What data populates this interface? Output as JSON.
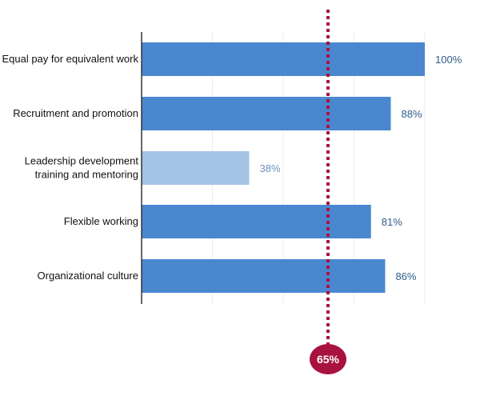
{
  "chart_data": {
    "type": "bar",
    "orientation": "horizontal",
    "categories": [
      [
        "Equal pay for equivalent work"
      ],
      [
        "Recruitment and promotion"
      ],
      [
        "Leadership development",
        "training and mentoring"
      ],
      [
        "Flexible working"
      ],
      [
        "Organizational culture"
      ]
    ],
    "values": [
      100,
      88,
      38,
      81,
      86
    ],
    "value_labels": [
      "100%",
      "88%",
      "38%",
      "81%",
      "86%"
    ],
    "highlight_below_reference": true,
    "xlim": [
      0,
      100
    ],
    "grid": "vertical, light",
    "reference_line": {
      "value": 65,
      "label": "65%",
      "color": "#a8123e"
    },
    "colors": {
      "bar": "#4a87cf",
      "bar_below_reference": "#a4c4e6",
      "value_label": "#2f5c8a",
      "value_label_below_reference": "#6c8fb3",
      "grid": "#ececec",
      "axis": "#333333"
    }
  }
}
